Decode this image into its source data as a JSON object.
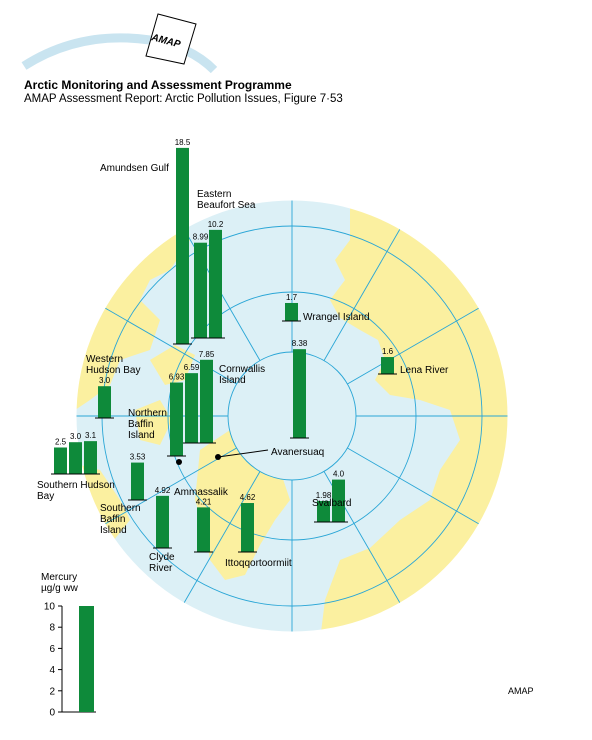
{
  "header": {
    "logo_text": "AMAP",
    "title": "Arctic Monitoring and Assessment Programme",
    "subtitle": "AMAP Assessment Report: Arctic Pollution Issues, Figure 7·53"
  },
  "legend": {
    "title_line1": "Mercury",
    "title_line2": "µg/g ww",
    "ticks": [
      "0",
      "2",
      "4",
      "6",
      "8",
      "10"
    ],
    "max_value": 10
  },
  "credit": "AMAP",
  "colors": {
    "ocean": "#dcf0f6",
    "land": "#fbf0a0",
    "bar": "#0e8a3a",
    "grid": "#2aa6d6",
    "border": "#ffffff"
  },
  "chart_data": {
    "type": "bar",
    "unit": "µg/g ww",
    "sites": [
      {
        "name": "Amundsen Gulf",
        "values": [
          "18.5"
        ]
      },
      {
        "name": "Eastern Beaufort Sea",
        "values": [
          "8.99",
          "10.2"
        ]
      },
      {
        "name": "Wrangel Island",
        "values": [
          "1.7"
        ]
      },
      {
        "name": "Lena River",
        "values": [
          "1.6"
        ]
      },
      {
        "name": "Cornwallis Island",
        "values": [
          "6.59",
          "7.85"
        ]
      },
      {
        "name": "Northern Baffin Island",
        "values": [
          "6.93"
        ]
      },
      {
        "name": "Avanersuaq",
        "values": [
          "8.38"
        ]
      },
      {
        "name": "Western Hudson Bay",
        "values": [
          "3.0"
        ]
      },
      {
        "name": "Southern Hudson Bay",
        "values": [
          "2.5",
          "3.0",
          "3.1"
        ]
      },
      {
        "name": "Southern Baffin Island",
        "values": [
          "3.53"
        ]
      },
      {
        "name": "Clyde River",
        "values": [
          "4.92"
        ]
      },
      {
        "name": "Ammassalik",
        "values": [
          "4.21"
        ]
      },
      {
        "name": "Ittoqqortoormiit",
        "values": [
          "4.62"
        ]
      },
      {
        "name": "Svalbard",
        "values": [
          "1.98",
          "4.0"
        ]
      }
    ]
  }
}
